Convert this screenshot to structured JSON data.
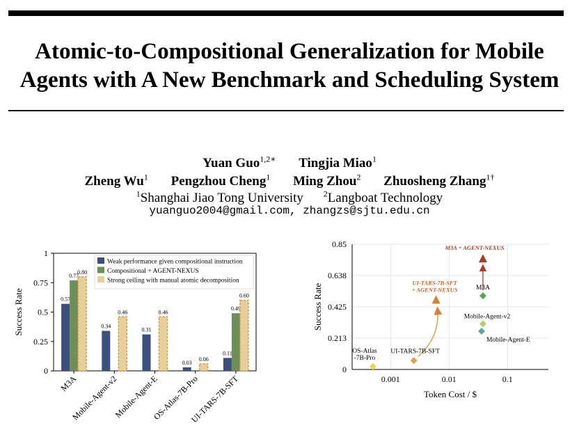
{
  "paper": {
    "title_line1": "Atomic-to-Compositional Generalization for Mobile",
    "title_line2": "Agents with A New Benchmark and Scheduling System",
    "authors_row1": [
      {
        "name": "Yuan Guo",
        "sup": "1,2∗"
      },
      {
        "name": "Tingjia Miao",
        "sup": "1"
      }
    ],
    "authors_row2": [
      {
        "name": "Zheng Wu",
        "sup": "1"
      },
      {
        "name": "Pengzhou Cheng",
        "sup": "1"
      },
      {
        "name": "Ming Zhou",
        "sup": "2"
      },
      {
        "name": "Zhuosheng Zhang",
        "sup": "1†"
      }
    ],
    "affiliations": [
      {
        "sup": "1",
        "name": "Shanghai Jiao Tong University"
      },
      {
        "sup": "2",
        "name": "Langboat Technology"
      }
    ],
    "emails": "yuanguo2004@gmail.com, zhangzs@sjtu.edu.cn"
  },
  "chart_data": [
    {
      "type": "bar",
      "ylabel": "Success Rate",
      "ylim": [
        0,
        1
      ],
      "yticks": [
        "0",
        "0.25",
        "0.5",
        "0.75",
        "1"
      ],
      "categories": [
        "M3A",
        "Mobile-Agent-v2",
        "Mobile-Agent-E",
        "OS-Atlas-7B-Pro",
        "UI-TARS-7B-SFT"
      ],
      "legend_position": "top-right",
      "series": [
        {
          "name": "Weak performance given compositional instruction",
          "color": "#3d4f7d",
          "values": [
            0.57,
            0.34,
            0.31,
            0.03,
            0.11
          ],
          "labels": [
            "0.57",
            "0.34",
            "0.31",
            "0.03",
            "0.11"
          ]
        },
        {
          "name": "Compositional + AGENT-NEXUS",
          "color": "#6f8f5a",
          "values": [
            0.77,
            null,
            null,
            null,
            0.49
          ],
          "labels": [
            "0.77",
            "",
            "",
            "",
            "0.49"
          ]
        },
        {
          "name": "Strong ceiling with manual atomic decomposition",
          "color": "#e5cf9a",
          "values": [
            0.8,
            0.46,
            0.46,
            0.06,
            0.6
          ],
          "labels": [
            "0.80",
            "0.46",
            "0.46",
            "0.06",
            "0.60"
          ]
        }
      ]
    },
    {
      "type": "scatter",
      "xlabel": "Token Cost / $",
      "ylabel": "Success Rate",
      "xscale": "log",
      "xlim": [
        0.00022,
        0.5
      ],
      "ylim": [
        0,
        0.85
      ],
      "xticks": [
        {
          "v": 0.001,
          "label": "0.001"
        },
        {
          "v": 0.01,
          "label": "0.01"
        },
        {
          "v": 0.1,
          "label": "0.1"
        }
      ],
      "yticks": [
        "0",
        "0.213",
        "0.425",
        "0.638",
        "0.85"
      ],
      "points": [
        {
          "name": "OS-Atlas\n-7B-Pro",
          "x": 0.0005,
          "y": 0.02,
          "marker": "diamond",
          "color": "#e8d45a",
          "label_pos": "above"
        },
        {
          "name": "UI-TARS-7B-SFT",
          "x": 0.0025,
          "y": 0.06,
          "marker": "diamond",
          "color": "#e0a04a",
          "label_pos": "above"
        },
        {
          "name": "UI-TARS-7B-SFT\n+ AGENT-NEXUS",
          "x": 0.006,
          "y": 0.47,
          "marker": "triangle",
          "color": "#d9822b",
          "label_pos": "above-left",
          "label_color": "#c8661e",
          "italic": true
        },
        {
          "name": "M3A",
          "x": 0.038,
          "y": 0.5,
          "marker": "diamond",
          "color": "#4fa84f",
          "label_pos": "above"
        },
        {
          "name": "M3A + AGENT-NEXUS",
          "x": 0.038,
          "y": 0.75,
          "marker": "triangle",
          "color": "#b03a2e",
          "label_pos": "above",
          "label_color": "#b03a2e",
          "italic": true
        },
        {
          "name": "Mobile-Agent-v2",
          "x": 0.038,
          "y": 0.31,
          "marker": "diamond",
          "color": "#a8d86a",
          "label_pos": "above"
        },
        {
          "name": "Mobile-Agent-E",
          "x": 0.036,
          "y": 0.26,
          "marker": "diamond",
          "color": "#5aa89a",
          "label_pos": "below-right"
        }
      ]
    }
  ]
}
